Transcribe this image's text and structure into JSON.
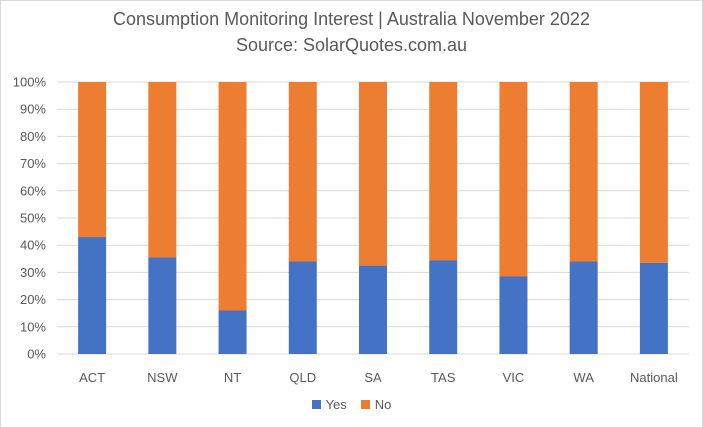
{
  "colors": {
    "yes": "#4472C4",
    "no": "#ED7D31",
    "grid": "#d9d9d9",
    "text": "#595959"
  },
  "chart_data": {
    "type": "bar",
    "stacked": true,
    "title": "Consumption Monitoring Interest | Australia November 2022",
    "subtitle": "Source: SolarQuotes.com.au",
    "categories": [
      "ACT",
      "NSW",
      "NT",
      "QLD",
      "SA",
      "TAS",
      "VIC",
      "WA",
      "National"
    ],
    "series": [
      {
        "name": "Yes",
        "values": [
          43,
          35.5,
          16,
          34,
          32.5,
          34.5,
          28.5,
          34,
          33.5
        ]
      },
      {
        "name": "No",
        "values": [
          57,
          64.5,
          84,
          66,
          67.5,
          65.5,
          71.5,
          66,
          66.5
        ]
      }
    ],
    "ylim": [
      0,
      100
    ],
    "yticks": [
      "0%",
      "10%",
      "20%",
      "30%",
      "40%",
      "50%",
      "60%",
      "70%",
      "80%",
      "90%",
      "100%"
    ],
    "grid": true,
    "legend_position": "bottom"
  }
}
